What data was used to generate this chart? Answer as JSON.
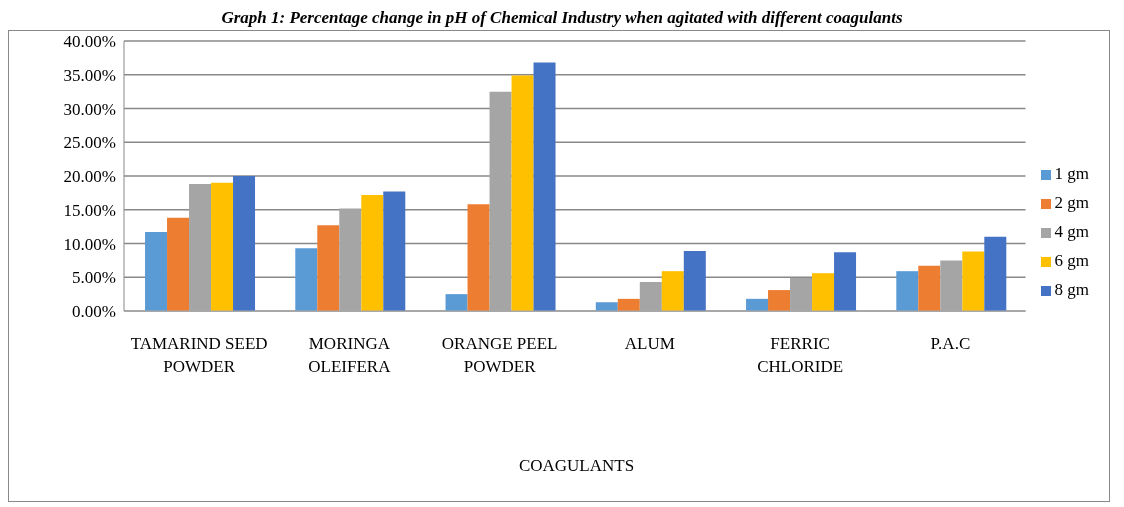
{
  "chart_data": {
    "type": "bar",
    "title": "Graph 1: Percentage change in pH of Chemical Industry when agitated with different coagulants",
    "xlabel": "COAGULANTS",
    "categories": [
      "TAMARIND SEED POWDER",
      "MORINGA OLEIFERA",
      "ORANGE PEEL POWDER",
      "ALUM",
      "FERRIC CHLORIDE",
      "P.A.C"
    ],
    "series": [
      {
        "name": "1 gm",
        "color": "#5b9bd5",
        "values": [
          11.7,
          9.3,
          2.5,
          1.3,
          1.8,
          5.9
        ]
      },
      {
        "name": "2 gm",
        "color": "#ed7d31",
        "values": [
          13.8,
          12.7,
          15.8,
          1.8,
          3.1,
          6.7
        ]
      },
      {
        "name": "4 gm",
        "color": "#a5a5a5",
        "values": [
          18.8,
          15.2,
          32.5,
          4.3,
          4.9,
          7.5
        ]
      },
      {
        "name": "6 gm",
        "color": "#ffc000",
        "values": [
          19.0,
          17.2,
          34.9,
          5.9,
          5.6,
          8.8
        ]
      },
      {
        "name": "8 gm",
        "color": "#4472c4",
        "values": [
          20.0,
          17.7,
          36.8,
          8.9,
          8.7,
          11.0
        ]
      }
    ],
    "ylim": [
      0,
      40
    ],
    "yticks": [
      {
        "value": 0,
        "label": "0.00%"
      },
      {
        "value": 5,
        "label": "5.00%"
      },
      {
        "value": 10,
        "label": "10.00%"
      },
      {
        "value": 15,
        "label": "15.00%"
      },
      {
        "value": 20,
        "label": "20.00%"
      },
      {
        "value": 25,
        "label": "25.00%"
      },
      {
        "value": 30,
        "label": "30.00%"
      },
      {
        "value": 35,
        "label": "35.00%"
      },
      {
        "value": 40,
        "label": "40.00%"
      }
    ],
    "grid": "y",
    "legend": "right"
  }
}
